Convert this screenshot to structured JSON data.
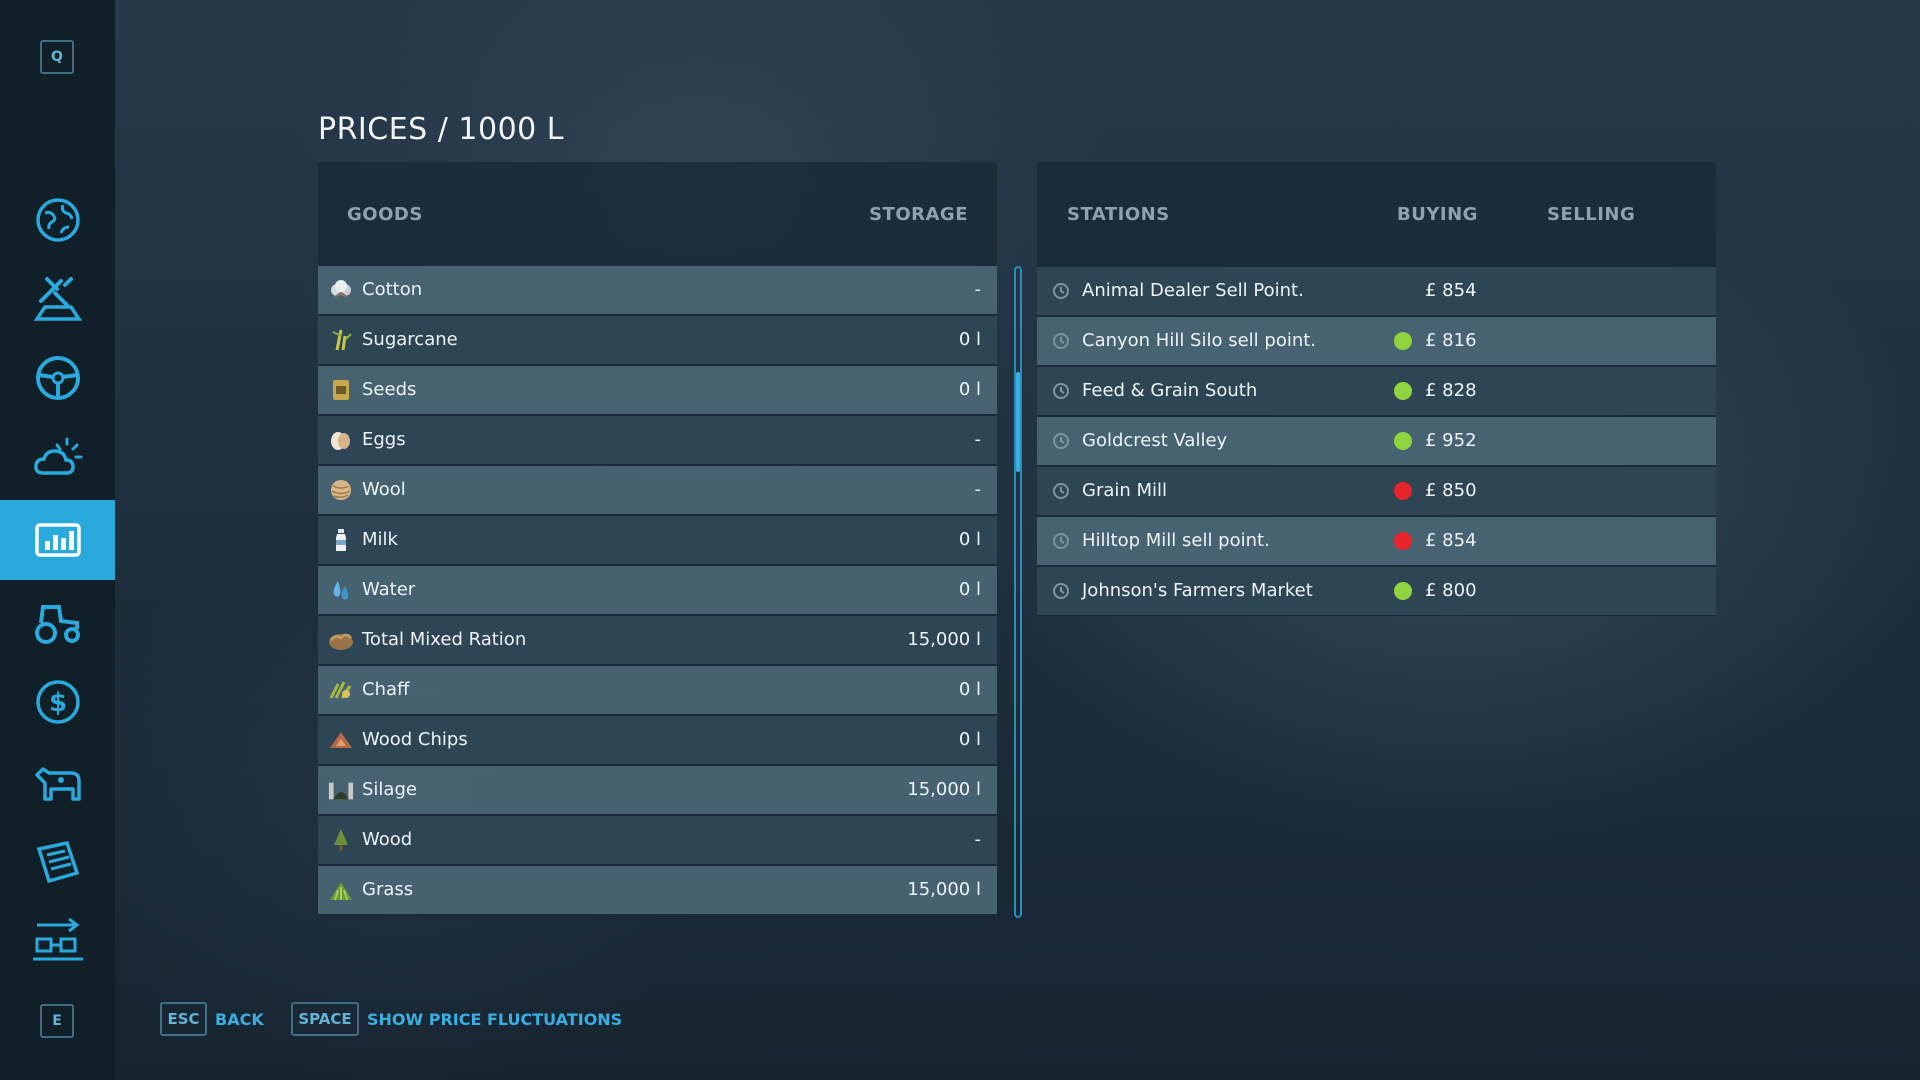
{
  "sidebar": {
    "top_key": "Q",
    "bottom_key": "E",
    "items": [
      {
        "icon": "map-globe-icon"
      },
      {
        "icon": "fields-icon"
      },
      {
        "icon": "steering-wheel-icon"
      },
      {
        "icon": "weather-icon"
      },
      {
        "icon": "prices-chart-icon",
        "active": true
      },
      {
        "icon": "tractor-icon"
      },
      {
        "icon": "finances-icon"
      },
      {
        "icon": "animals-icon"
      },
      {
        "icon": "contracts-icon"
      },
      {
        "icon": "production-icon"
      }
    ]
  },
  "title": "PRICES / 1000 L",
  "goods": {
    "header_goods": "GOODS",
    "header_storage": "STORAGE",
    "rows": [
      {
        "name": "Cotton",
        "storage": "-"
      },
      {
        "name": "Sugarcane",
        "storage": "0 l"
      },
      {
        "name": "Seeds",
        "storage": "0 l"
      },
      {
        "name": "Eggs",
        "storage": "-"
      },
      {
        "name": "Wool",
        "storage": "-"
      },
      {
        "name": "Milk",
        "storage": "0 l"
      },
      {
        "name": "Water",
        "storage": "0 l"
      },
      {
        "name": "Total Mixed Ration",
        "storage": "15,000 l"
      },
      {
        "name": "Chaff",
        "storage": "0 l"
      },
      {
        "name": "Wood Chips",
        "storage": "0 l"
      },
      {
        "name": "Silage",
        "storage": "15,000 l"
      },
      {
        "name": "Wood",
        "storage": "-"
      },
      {
        "name": "Grass",
        "storage": "15,000 l"
      }
    ]
  },
  "stations": {
    "header_stations": "STATIONS",
    "header_buying": "BUYING",
    "header_selling": "SELLING",
    "rows": [
      {
        "name": "Animal Dealer Sell Point.",
        "trend": "none",
        "price": "£ 854"
      },
      {
        "name": "Canyon Hill Silo sell point.",
        "trend": "up",
        "price": "£ 816"
      },
      {
        "name": "Feed & Grain South",
        "trend": "up",
        "price": "£ 828"
      },
      {
        "name": "Goldcrest Valley",
        "trend": "up",
        "price": "£ 952"
      },
      {
        "name": "Grain Mill",
        "trend": "down",
        "price": "£ 850"
      },
      {
        "name": "Hilltop Mill sell point.",
        "trend": "down",
        "price": "£ 854"
      },
      {
        "name": "Johnson's Farmers Market",
        "trend": "up",
        "price": "£ 800"
      }
    ]
  },
  "bottom": {
    "esc_key": "ESC",
    "back_label": "BACK",
    "space_key": "SPACE",
    "fluct_label": "SHOW PRICE FLUCTUATIONS"
  },
  "colors": {
    "accent": "#2aa9dc",
    "trend_up": "#8ed43d",
    "trend_down": "#e5242c"
  }
}
